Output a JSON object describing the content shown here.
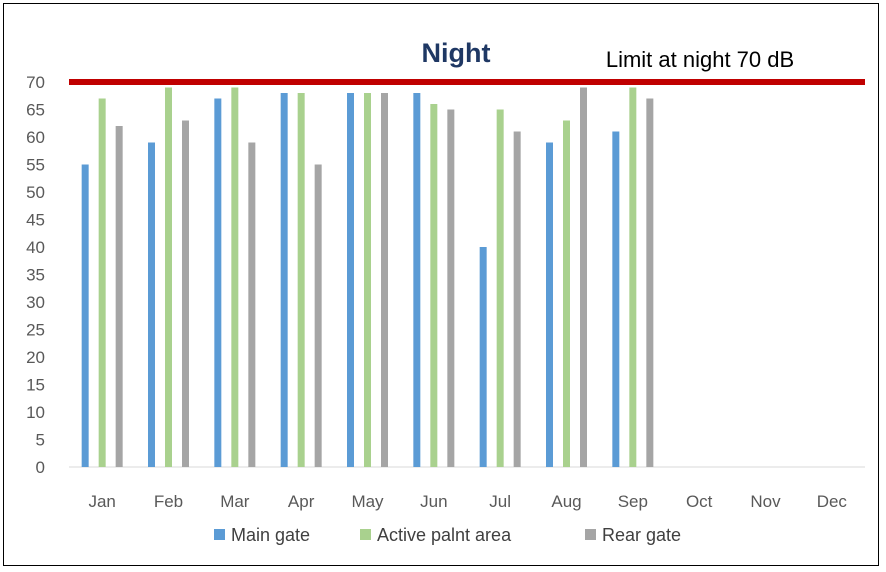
{
  "chart_data": {
    "type": "bar",
    "title": "Night",
    "categories": [
      "Jan",
      "Feb",
      "Mar",
      "Apr",
      "May",
      "Jun",
      "Jul",
      "Aug",
      "Sep",
      "Oct",
      "Nov",
      "Dec"
    ],
    "series": [
      {
        "name": "Main gate",
        "color": "#5b9bd5",
        "values": [
          55,
          59,
          67,
          68,
          68,
          68,
          40,
          59,
          61,
          null,
          null,
          null
        ]
      },
      {
        "name": "Active palnt area",
        "color": "#a9d18e",
        "values": [
          67,
          69,
          69,
          68,
          68,
          66,
          65,
          63,
          69,
          null,
          null,
          null
        ]
      },
      {
        "name": "Rear gate",
        "color": "#a5a5a5",
        "values": [
          62,
          63,
          59,
          55,
          68,
          65,
          61,
          69,
          67,
          null,
          null,
          null
        ]
      }
    ],
    "ylim": [
      0,
      70
    ],
    "yticks": [
      0,
      5,
      10,
      15,
      20,
      25,
      30,
      35,
      40,
      45,
      50,
      55,
      60,
      65,
      70
    ],
    "limit_line": {
      "value": 70,
      "label": "Limit at night 70 dB",
      "color": "#c00000"
    },
    "legend_position": "bottom",
    "grid": false
  }
}
